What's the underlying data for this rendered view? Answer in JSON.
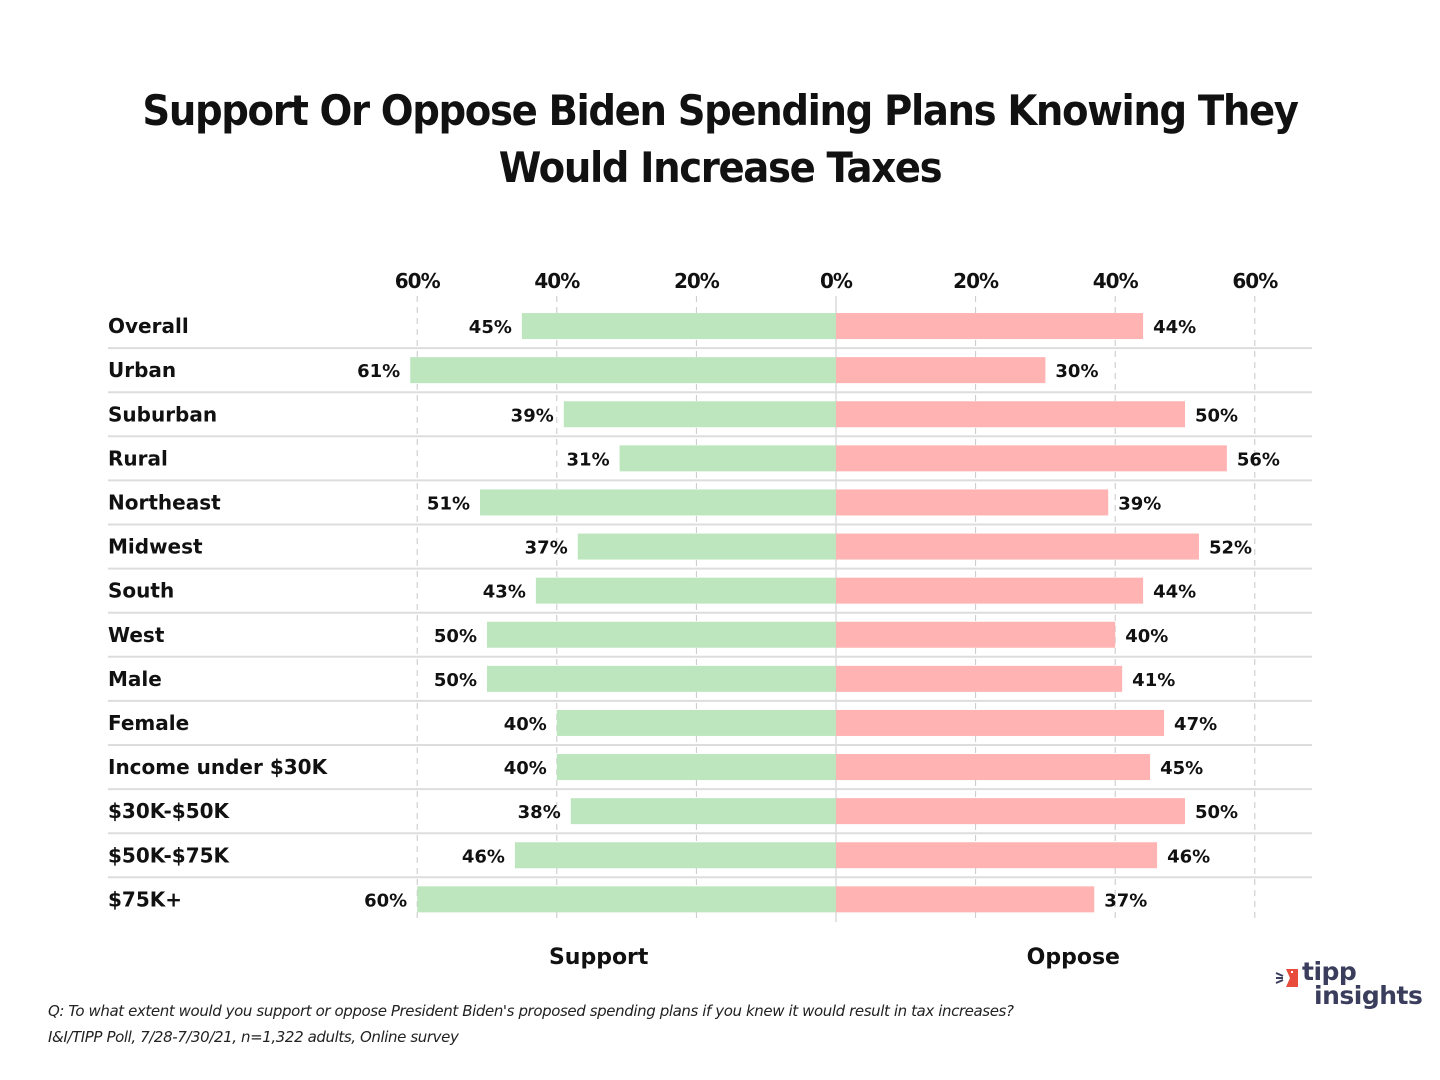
{
  "chart_data": {
    "type": "bar",
    "subtype": "diverging-horizontal",
    "title_lines": [
      "Support Or Oppose Biden Spending Plans Knowing They",
      "Would Increase Taxes"
    ],
    "categories": [
      "Overall",
      "Urban",
      "Suburban",
      "Rural",
      "Northeast",
      "Midwest",
      "South",
      "West",
      "Male",
      "Female",
      "Income under $30K",
      "$30K-$50K",
      "$50K-$75K",
      "$75K+"
    ],
    "series": [
      {
        "name": "Support",
        "color": "#bde6bf",
        "values": [
          45,
          61,
          39,
          31,
          51,
          37,
          43,
          50,
          50,
          40,
          40,
          38,
          46,
          60
        ]
      },
      {
        "name": "Oppose",
        "color": "#ffb3b3",
        "values": [
          44,
          30,
          50,
          56,
          39,
          52,
          44,
          40,
          41,
          47,
          45,
          50,
          46,
          37
        ]
      }
    ],
    "xlim": [
      -60,
      60
    ],
    "xticks": [
      -60,
      -40,
      -20,
      0,
      20,
      40,
      60
    ],
    "xtick_labels": [
      "60%",
      "40%",
      "20%",
      "0%",
      "20%",
      "40%",
      "60%"
    ],
    "xaxis_position": "top",
    "gridlines": "vertical-dashed",
    "value_label_suffix": "%",
    "axis_group_labels": {
      "left": "Support",
      "right": "Oppose"
    },
    "legend": "none"
  },
  "footnotes": {
    "question": "Q: To what extent would you support or oppose President Biden's proposed spending plans if you knew it would result in tax increases?",
    "source": "I&I/TIPP Poll, 7/28-7/30/21, n=1,322 adults, Online survey"
  },
  "logo": {
    "line1": "tipp",
    "line2": "insights",
    "mark_color": "#e84c3d",
    "text_color": "#3a3d5c"
  },
  "colors": {
    "support": "#bde6bf",
    "oppose": "#ffb3b3",
    "grid": "#c8c8c8",
    "row_divider": "#dddddd"
  }
}
